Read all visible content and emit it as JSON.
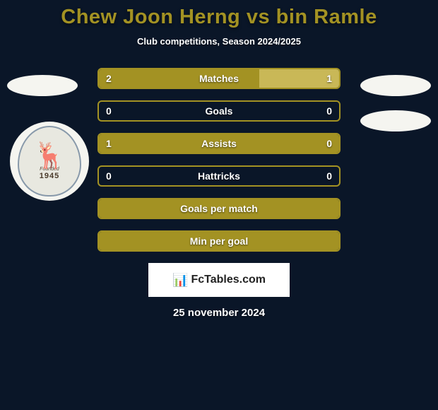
{
  "title": {
    "text": "Chew Joon Herng vs bin Ramle",
    "color": "#a39223",
    "fontsize": 29
  },
  "subtitle": "Club competitions, Season 2024/2025",
  "colors": {
    "background": "#0a1628",
    "player1_accent": "#a39223",
    "player2_accent": "#c9b857",
    "border": "#a39223"
  },
  "club": {
    "founded_label": "Founded",
    "year": "1945"
  },
  "stats": [
    {
      "label": "Matches",
      "left_value": "2",
      "right_value": "1",
      "left_pct": 66.7,
      "right_pct": 33.3,
      "show_fill": true
    },
    {
      "label": "Goals",
      "left_value": "0",
      "right_value": "0",
      "left_pct": 0,
      "right_pct": 0,
      "show_fill": false
    },
    {
      "label": "Assists",
      "left_value": "1",
      "right_value": "0",
      "left_pct": 100,
      "right_pct": 0,
      "show_fill": true
    },
    {
      "label": "Hattricks",
      "left_value": "0",
      "right_value": "0",
      "left_pct": 0,
      "right_pct": 0,
      "show_fill": false
    },
    {
      "label": "Goals per match",
      "left_value": "",
      "right_value": "",
      "left_pct": 100,
      "right_pct": 0,
      "show_fill": true
    },
    {
      "label": "Min per goal",
      "left_value": "",
      "right_value": "",
      "left_pct": 100,
      "right_pct": 0,
      "show_fill": true
    }
  ],
  "watermark": {
    "icon": "✓",
    "text": "FcTables.com"
  },
  "date": "25 november 2024"
}
